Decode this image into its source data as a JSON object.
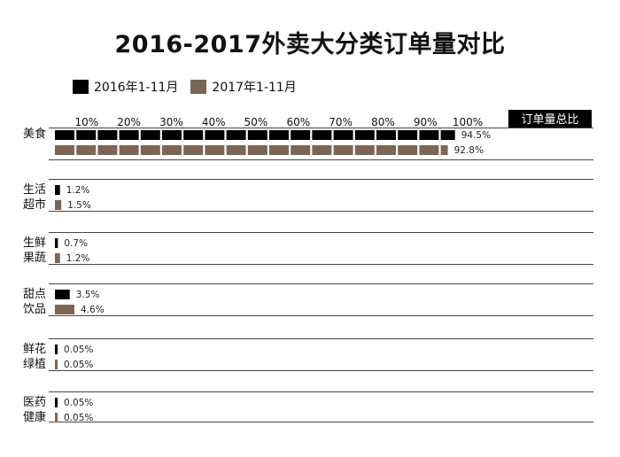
{
  "chart_data": {
    "type": "bar",
    "title": "2016-2017外卖大分类订单量对比",
    "axis_title": "订单量总比",
    "ticks": [
      "10%",
      "20%",
      "30%",
      "40%",
      "50%",
      "60%",
      "70%",
      "80%",
      "90%",
      "100%"
    ],
    "xlim": [
      0,
      100
    ],
    "categories": [
      {
        "lines": [
          "美食"
        ]
      },
      {
        "lines": [
          "生活",
          "超市"
        ]
      },
      {
        "lines": [
          "生鲜",
          "果蔬"
        ]
      },
      {
        "lines": [
          "甜点",
          "饮品"
        ]
      },
      {
        "lines": [
          "鲜花",
          "绿植"
        ]
      },
      {
        "lines": [
          "医药",
          "健康"
        ]
      }
    ],
    "series": [
      {
        "name": "2016年1-11月",
        "color": "#000000",
        "values": [
          94.5,
          1.2,
          0.7,
          3.5,
          0.05,
          0.05
        ],
        "labels": [
          "94.5%",
          "1.2%",
          "0.7%",
          "3.5%",
          "0.05%",
          "0.05%"
        ]
      },
      {
        "name": "2017年1-11月",
        "color": "#7b6656",
        "values": [
          92.8,
          1.5,
          1.2,
          4.6,
          0.05,
          0.05
        ],
        "labels": [
          "92.8%",
          "1.5%",
          "1.2%",
          "4.6%",
          "0.05%",
          "0.05%"
        ]
      }
    ]
  }
}
